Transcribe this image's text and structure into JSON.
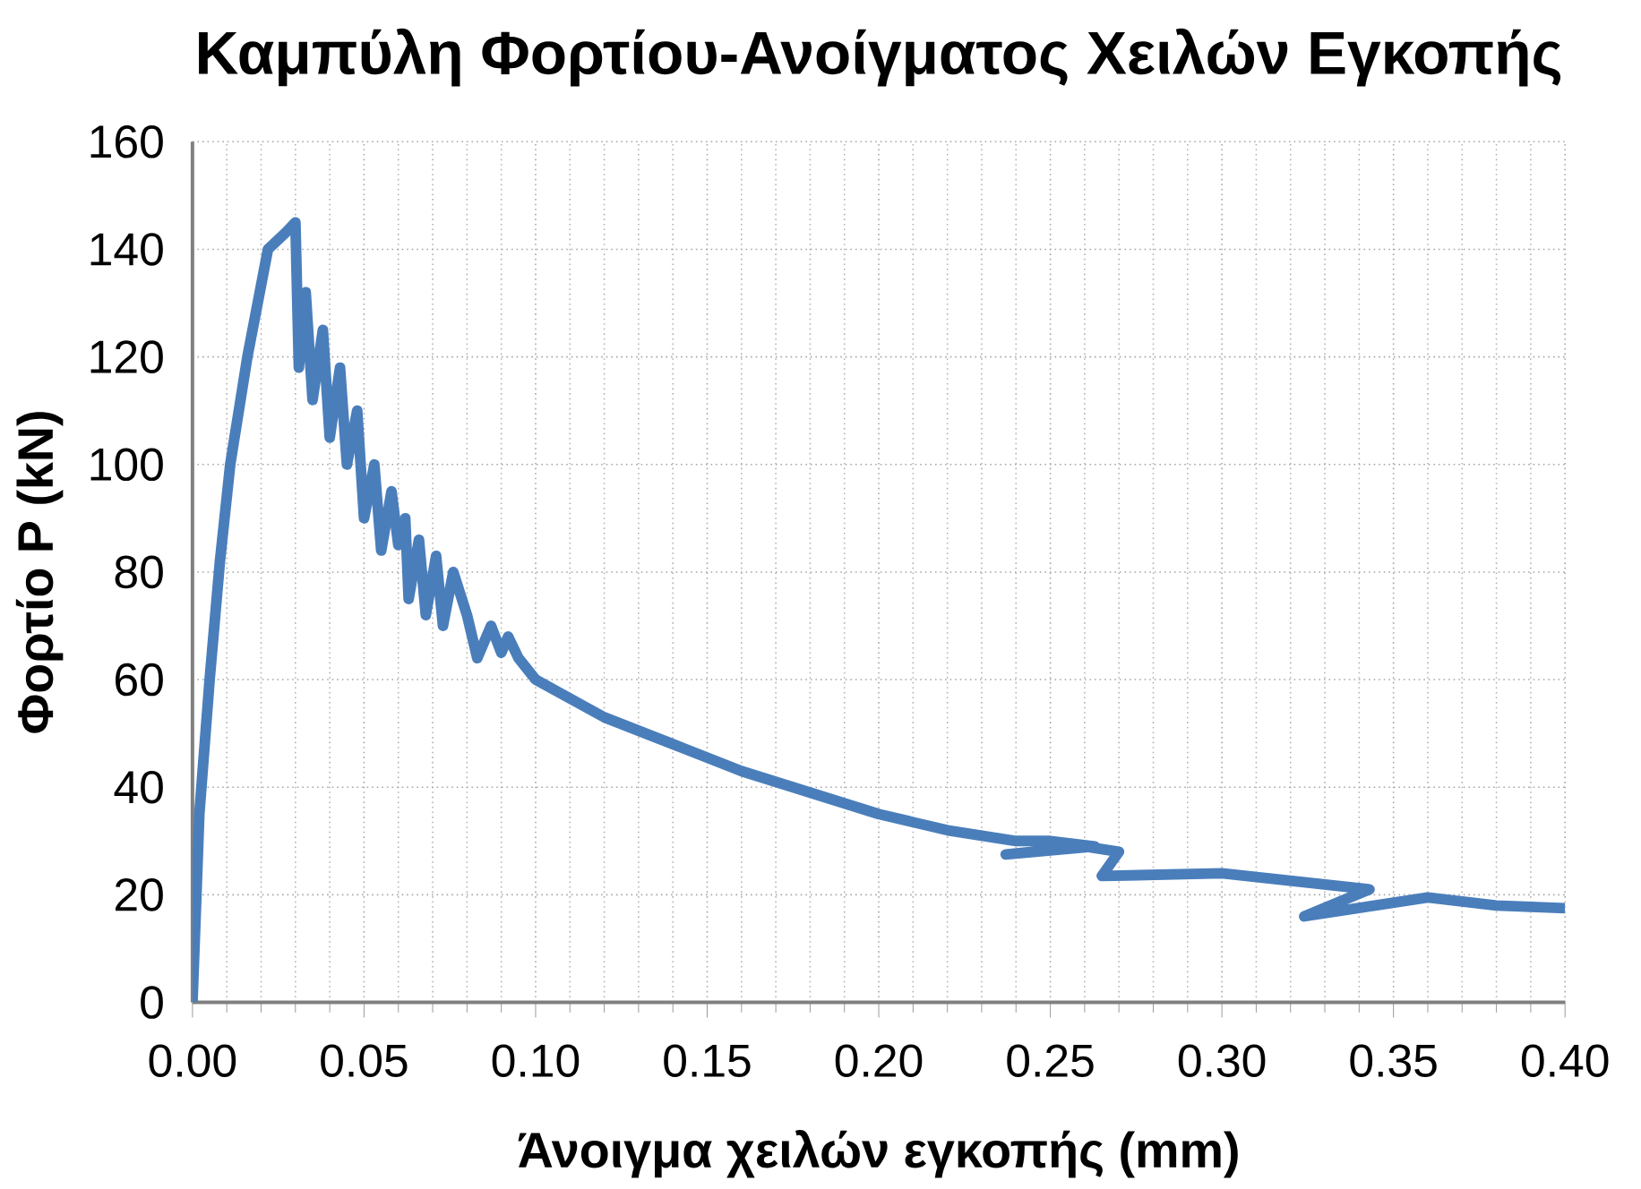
{
  "chart_data": {
    "type": "line",
    "title": "Καμπύλη Φορτίου-Ανοίγματος Χειλών Εγκοπής",
    "xlabel": "Άνοιγμα χειλών εγκοπής (mm)",
    "ylabel": "Φορτίο P (kN)",
    "xlim": [
      0,
      0.4
    ],
    "ylim": [
      0,
      160
    ],
    "xticks": [
      {
        "value": 0,
        "label": "0.00"
      },
      {
        "value": 0.05,
        "label": "0.05"
      },
      {
        "value": 0.1,
        "label": "0.10"
      },
      {
        "value": 0.15,
        "label": "0.15"
      },
      {
        "value": 0.2,
        "label": "0.20"
      },
      {
        "value": 0.25,
        "label": "0.25"
      },
      {
        "value": 0.3,
        "label": "0.30"
      },
      {
        "value": 0.35,
        "label": "0.35"
      },
      {
        "value": 0.4,
        "label": "0.40"
      }
    ],
    "yticks": [
      0,
      20,
      40,
      60,
      80,
      100,
      120,
      140,
      160
    ],
    "grid": true,
    "marker": "none",
    "line_style": "solid",
    "series": [
      {
        "color": "#4a7ebb",
        "x": [
          0,
          0.002,
          0.005,
          0.008,
          0.011,
          0.016,
          0.022,
          0.027,
          0.03,
          0.031,
          0.033,
          0.035,
          0.038,
          0.04,
          0.043,
          0.045,
          0.048,
          0.05,
          0.053,
          0.055,
          0.058,
          0.06,
          0.062,
          0.063,
          0.066,
          0.068,
          0.071,
          0.073,
          0.076,
          0.08,
          0.083,
          0.087,
          0.09,
          0.092,
          0.095,
          0.1,
          0.12,
          0.14,
          0.16,
          0.18,
          0.2,
          0.22,
          0.24,
          0.25,
          0.263,
          0.237,
          0.26,
          0.27,
          0.265,
          0.3,
          0.343,
          0.324,
          0.36,
          0.38,
          0.4
        ],
        "values": [
          0,
          35,
          60,
          82,
          100,
          120,
          140,
          143,
          145,
          118,
          132,
          112,
          125,
          105,
          118,
          100,
          110,
          90,
          100,
          84,
          95,
          85,
          90,
          75,
          86,
          72,
          83,
          70,
          80,
          72,
          64,
          70,
          65,
          68,
          64,
          60,
          53,
          48,
          43,
          39,
          35,
          32,
          30,
          30,
          29,
          27.5,
          29,
          28,
          23.5,
          24,
          21,
          16,
          19.5,
          18,
          17.5
        ]
      }
    ]
  }
}
